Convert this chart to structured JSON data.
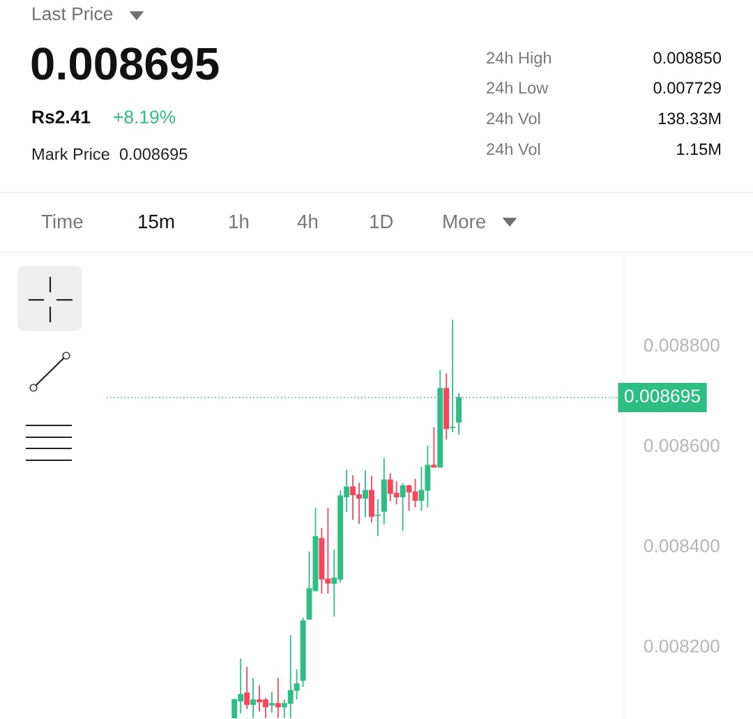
{
  "chart_data": {
    "type": "candlestick",
    "title": "Last Price",
    "subtitle": "0.008695",
    "annotations": [
      "Rs2.41",
      "+8.19%",
      "Mark Price  0.008695",
      "24h High",
      "0.008850",
      "24h Low",
      "0.007729",
      "24h Vol",
      "138.33M",
      "24h Vol",
      "1.15M",
      "Time",
      "15m",
      "1h",
      "4h",
      "1D",
      "More"
    ],
    "categories": [
      null,
      null,
      null,
      null,
      null,
      null,
      null,
      null,
      null,
      null,
      null,
      null,
      null,
      null,
      null,
      null,
      null,
      null,
      null,
      null,
      null,
      null,
      null,
      null,
      null,
      null,
      null,
      null,
      null,
      null,
      null,
      null,
      null,
      null,
      null,
      null,
      null,
      null,
      null,
      null,
      null,
      null,
      null,
      null,
      null,
      null,
      null,
      null,
      null,
      null,
      null,
      null,
      null,
      null,
      null,
      null,
      null,
      null,
      null,
      null,
      null,
      null,
      null,
      null,
      null,
      null,
      null,
      null,
      null,
      null,
      null,
      null,
      null,
      null,
      null,
      null,
      null,
      null,
      null,
      null,
      null,
      null,
      null
    ],
    "ohlc": [
      null,
      null,
      null,
      null,
      null,
      null,
      null,
      null,
      null,
      null,
      null,
      null,
      null,
      null,
      null,
      null,
      null,
      null,
      null,
      null,
      [
        0.008056,
        0.008094,
        0.008056,
        0.008093
      ],
      [
        0.00809,
        0.008174,
        0.008065,
        0.008103
      ],
      [
        0.008106,
        0.008158,
        0.008074,
        0.008083
      ],
      [
        0.008083,
        0.008136,
        0.008056,
        0.008092
      ],
      [
        0.008092,
        0.008121,
        0.008069,
        0.008088
      ],
      [
        0.008092,
        0.008096,
        0.008056,
        0.008078
      ],
      [
        0.008082,
        0.008108,
        0.008067,
        0.008085
      ],
      [
        0.008085,
        0.008136,
        0.008056,
        0.008078
      ],
      [
        0.008078,
        0.008093,
        0.008056,
        0.008085
      ],
      [
        0.008085,
        0.008221,
        0.008056,
        0.008111
      ],
      [
        0.008111,
        0.008153,
        0.008093,
        0.008124
      ],
      [
        0.008131,
        0.008256,
        0.008118,
        0.00825
      ],
      [
        0.008253,
        0.008388,
        0.008251,
        0.008314
      ],
      [
        0.00831,
        0.008475,
        0.008308,
        0.008418
      ],
      [
        0.008414,
        0.008435,
        0.008304,
        0.008333
      ],
      [
        0.008333,
        0.008475,
        0.008304,
        0.008325
      ],
      [
        0.008324,
        0.008392,
        0.008258,
        0.008335
      ],
      [
        0.008333,
        0.00851,
        0.008326,
        0.008499
      ],
      [
        0.008497,
        0.008551,
        0.008467,
        0.008517
      ],
      [
        0.008517,
        0.00854,
        0.008451,
        0.008501
      ],
      [
        0.008501,
        0.008525,
        0.008443,
        0.008494
      ],
      [
        0.008494,
        0.00855,
        0.008456,
        0.00851
      ],
      [
        0.00851,
        0.008539,
        0.008446,
        0.008458
      ],
      [
        0.00846,
        0.008492,
        0.008419,
        0.008461
      ],
      [
        0.008468,
        0.008574,
        0.008442,
        0.008531
      ],
      [
        0.008531,
        0.008544,
        0.008488,
        0.008504
      ],
      [
        0.008504,
        0.008528,
        0.008482,
        0.008497
      ],
      [
        0.008497,
        0.008524,
        0.008429,
        0.008519
      ],
      [
        0.008519,
        0.008521,
        0.008469,
        0.008507
      ],
      [
        0.008507,
        0.008533,
        0.008476,
        0.00849
      ],
      [
        0.00849,
        0.008557,
        0.008469,
        0.00851
      ],
      [
        0.00851,
        0.008599,
        0.008476,
        0.00856
      ],
      [
        0.00856,
        0.008636,
        0.008556,
        0.008556
      ],
      [
        0.008556,
        0.00875,
        0.008556,
        0.008713
      ],
      [
        0.008713,
        0.008743,
        0.008611,
        0.008633
      ],
      [
        0.008635,
        0.00885,
        0.008626,
        0.008636
      ],
      [
        0.008646,
        0.008704,
        0.008621,
        0.008695
      ],
      null,
      null,
      null,
      null,
      null,
      null,
      null,
      null,
      null,
      null,
      null,
      null,
      null,
      null,
      null,
      null,
      null,
      null,
      null,
      null,
      null,
      null,
      null,
      null,
      null,
      null
    ],
    "colors": [
      null,
      null,
      null,
      null,
      null,
      null,
      null,
      null,
      null,
      null,
      null,
      null,
      null,
      null,
      null,
      null,
      null,
      null,
      null,
      null,
      "#2ebd85",
      "#2ebd85",
      "#f6465d",
      "#2ebd85",
      "#f6465d",
      "#f6465d",
      "#2ebd85",
      "#f6465d",
      "#2ebd85",
      "#2ebd85",
      "#2ebd85",
      "#2ebd85",
      "#2ebd85",
      "#2ebd85",
      "#f6465d",
      "#f6465d",
      "#2ebd85",
      "#2ebd85",
      "#2ebd85",
      "#f6465d",
      "#f6465d",
      "#2ebd85",
      "#f6465d",
      "#2ebd85",
      "#2ebd85",
      "#f6465d",
      "#f6465d",
      "#2ebd85",
      "#f6465d",
      "#f6465d",
      "#2ebd85",
      "#2ebd85",
      "#f6465d",
      "#2ebd85",
      "#f6465d",
      "#2ebd85",
      "#2ebd85",
      null,
      null,
      null,
      null,
      null,
      null,
      null,
      null,
      null,
      null,
      null,
      null,
      null,
      null,
      null,
      null,
      null,
      null,
      null,
      null,
      null,
      null,
      null,
      null,
      null,
      null
    ],
    "ylim": [
      0.008054,
      0.00898
    ],
    "yticks": [
      {
        "value": 0.0082,
        "label": "0.008200"
      },
      {
        "value": 0.0084,
        "label": "0.008400"
      },
      {
        "value": 0.0086,
        "label": "0.008600"
      },
      {
        "value": 0.0088,
        "label": "0.008800"
      }
    ],
    "ref_lines": [
      {
        "axis": "y",
        "value": 0.008695,
        "label": "0.008695",
        "color": "#2ebd85",
        "line_style": "dotted"
      }
    ],
    "tick_labels": "y",
    "grid": false,
    "legend": false
  }
}
